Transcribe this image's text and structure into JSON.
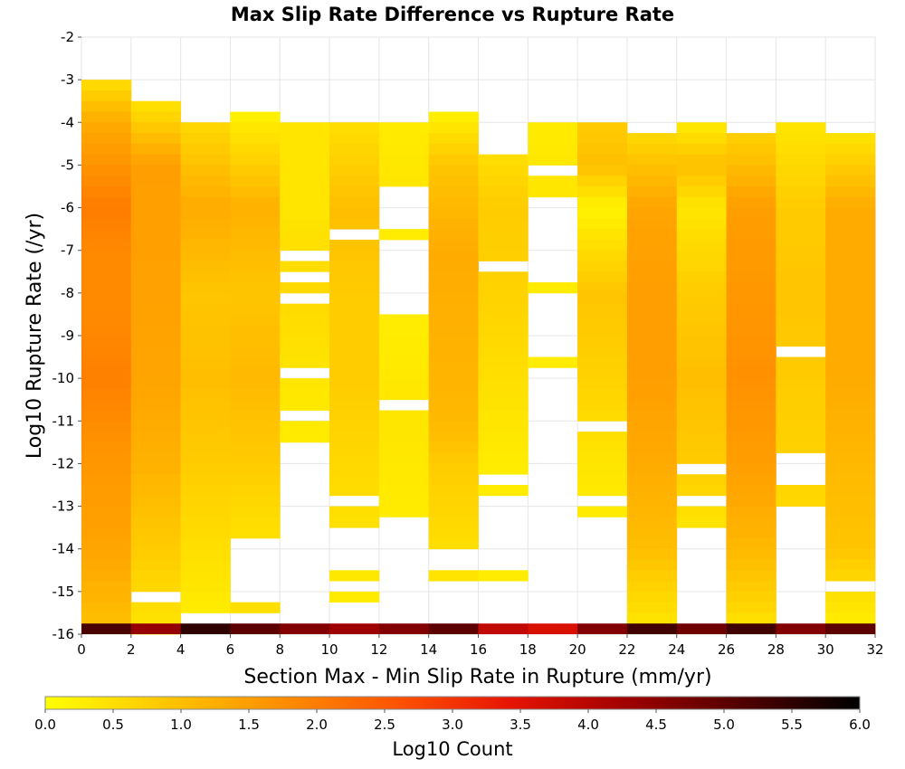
{
  "chart_data": {
    "type": "heatmap",
    "title": "Max Slip Rate Difference vs Rupture Rate",
    "xlabel": "Section Max - Min Slip Rate in Rupture (mm/yr)",
    "ylabel": "Log10 Rupture Rate (/yr)",
    "xlim": [
      0,
      32
    ],
    "ylim": [
      -16,
      -2
    ],
    "x_ticks": [
      "0",
      "2",
      "4",
      "6",
      "8",
      "10",
      "12",
      "14",
      "16",
      "18",
      "20",
      "22",
      "24",
      "26",
      "28",
      "30",
      "32"
    ],
    "y_ticks": [
      "-2",
      "-3",
      "-4",
      "-5",
      "-6",
      "-7",
      "-8",
      "-9",
      "-10",
      "-11",
      "-12",
      "-13",
      "-14",
      "-15",
      "-16"
    ],
    "x_bin_width": 2,
    "y_bin_height": 0.25,
    "grid": true,
    "colorbar": {
      "label": "Log10 Count",
      "min": 0.0,
      "max": 6.0,
      "ticks": [
        "0.0",
        "0.5",
        "1.0",
        "1.5",
        "2.0",
        "2.5",
        "3.0",
        "3.5",
        "4.0",
        "4.5",
        "5.0",
        "5.5",
        "6.0"
      ],
      "colors": [
        "#ffff00",
        "#ffc800",
        "#ff9000",
        "#ff5500",
        "#e61400",
        "#a00000",
        "#500000",
        "#000000"
      ]
    },
    "columns": [
      {
        "x0": 0,
        "top": -3.0,
        "bottom": -15.75,
        "profile": [
          [
            -3.0,
            0.5
          ],
          [
            -4.0,
            1.3
          ],
          [
            -6.0,
            2.0
          ],
          [
            -7.0,
            1.8
          ],
          [
            -8.5,
            1.8
          ],
          [
            -10.0,
            1.95
          ],
          [
            -12.0,
            1.6
          ],
          [
            -14.0,
            1.4
          ],
          [
            -15.75,
            1.0
          ]
        ],
        "gaps": []
      },
      {
        "x0": 2,
        "top": -3.5,
        "bottom": -16.0,
        "profile": [
          [
            -3.5,
            0.4
          ],
          [
            -5.0,
            1.5
          ],
          [
            -8.0,
            1.45
          ],
          [
            -10.0,
            1.4
          ],
          [
            -12.0,
            1.2
          ],
          [
            -14.0,
            0.8
          ],
          [
            -16.0,
            0.4
          ]
        ],
        "gaps": [
          [
            -15.25,
            -15.0
          ]
        ]
      },
      {
        "x0": 4,
        "top": -4.0,
        "bottom": -15.5,
        "profile": [
          [
            -4.0,
            0.6
          ],
          [
            -6.0,
            1.3
          ],
          [
            -8.0,
            0.9
          ],
          [
            -10.0,
            1.0
          ],
          [
            -12.0,
            0.8
          ],
          [
            -14.0,
            0.5
          ],
          [
            -15.5,
            0.3
          ]
        ],
        "gaps": []
      },
      {
        "x0": 6,
        "top": -3.75,
        "bottom": -15.5,
        "profile": [
          [
            -3.75,
            0.2
          ],
          [
            -6.0,
            1.2
          ],
          [
            -8.0,
            0.9
          ],
          [
            -10.0,
            1.1
          ],
          [
            -12.0,
            0.8
          ],
          [
            -13.5,
            0.5
          ]
        ],
        "gaps": [
          [
            -15.25,
            -13.75
          ]
        ]
      },
      {
        "x0": 8,
        "top": -4.0,
        "bottom": -11.5,
        "profile": [
          [
            -4.0,
            0.4
          ],
          [
            -6.0,
            0.4
          ],
          [
            -8.0,
            0.6
          ],
          [
            -10.0,
            0.4
          ],
          [
            -11.5,
            0.3
          ]
        ],
        "gaps": [
          [
            -7.25,
            -7.0
          ],
          [
            -7.75,
            -7.5
          ],
          [
            -8.25,
            -8.0
          ],
          [
            -10.0,
            -9.75
          ],
          [
            -11.0,
            -10.75
          ]
        ]
      },
      {
        "x0": 10,
        "top": -4.0,
        "bottom": -15.25,
        "profile": [
          [
            -4.0,
            0.5
          ],
          [
            -6.0,
            1.0
          ],
          [
            -8.0,
            0.8
          ],
          [
            -10.0,
            0.8
          ],
          [
            -12.0,
            0.6
          ],
          [
            -15.25,
            0.3
          ]
        ],
        "gaps": [
          [
            -6.75,
            -6.5
          ],
          [
            -13.0,
            -12.75
          ],
          [
            -14.5,
            -13.5
          ],
          [
            -15.0,
            -14.75
          ]
        ]
      },
      {
        "x0": 12,
        "top": -4.0,
        "bottom": -13.25,
        "profile": [
          [
            -4.0,
            0.3
          ],
          [
            -5.5,
            0.4
          ],
          [
            -6.5,
            0.3
          ],
          [
            -9.0,
            0.3
          ],
          [
            -11.0,
            0.4
          ],
          [
            -13.25,
            0.3
          ]
        ],
        "gaps": [
          [
            -6.5,
            -5.5
          ],
          [
            -8.5,
            -6.75
          ],
          [
            -10.75,
            -10.5
          ]
        ]
      },
      {
        "x0": 14,
        "top": -3.75,
        "bottom": -14.75,
        "profile": [
          [
            -3.75,
            0.2
          ],
          [
            -5.0,
            0.9
          ],
          [
            -7.0,
            1.3
          ],
          [
            -9.0,
            1.2
          ],
          [
            -11.0,
            1.1
          ],
          [
            -12.0,
            0.8
          ],
          [
            -14.0,
            0.5
          ],
          [
            -14.75,
            0.4
          ]
        ],
        "gaps": [
          [
            -14.5,
            -14.0
          ]
        ]
      },
      {
        "x0": 16,
        "top": -4.75,
        "bottom": -14.75,
        "profile": [
          [
            -4.75,
            0.5
          ],
          [
            -6.0,
            0.8
          ],
          [
            -8.0,
            0.7
          ],
          [
            -10.0,
            0.5
          ],
          [
            -12.0,
            0.3
          ],
          [
            -14.75,
            0.3
          ]
        ],
        "gaps": [
          [
            -7.5,
            -7.25
          ],
          [
            -12.5,
            -12.25
          ],
          [
            -14.5,
            -12.75
          ]
        ]
      },
      {
        "x0": 18,
        "top": -4.0,
        "bottom": -9.75,
        "profile": [
          [
            -4.0,
            0.3
          ],
          [
            -5.5,
            0.4
          ],
          [
            -8.0,
            0.3
          ],
          [
            -9.75,
            0.3
          ]
        ],
        "gaps": [
          [
            -5.25,
            -5.0
          ],
          [
            -7.75,
            -5.75
          ],
          [
            -9.5,
            -8.0
          ]
        ]
      },
      {
        "x0": 20,
        "top": -4.0,
        "bottom": -13.25,
        "profile": [
          [
            -4.0,
            0.8
          ],
          [
            -5.0,
            1.0
          ],
          [
            -6.0,
            0.2
          ],
          [
            -8.0,
            0.9
          ],
          [
            -10.0,
            0.7
          ],
          [
            -12.0,
            0.4
          ],
          [
            -13.25,
            0.3
          ]
        ],
        "gaps": [
          [
            -11.25,
            -11.0
          ],
          [
            -13.0,
            -12.75
          ]
        ]
      },
      {
        "x0": 22,
        "top": -4.25,
        "bottom": -15.75,
        "profile": [
          [
            -4.25,
            0.6
          ],
          [
            -6.0,
            1.4
          ],
          [
            -8.0,
            1.5
          ],
          [
            -10.0,
            1.5
          ],
          [
            -12.0,
            1.3
          ],
          [
            -14.0,
            1.0
          ],
          [
            -15.75,
            0.4
          ]
        ],
        "gaps": []
      },
      {
        "x0": 24,
        "top": -4.0,
        "bottom": -13.5,
        "profile": [
          [
            -4.0,
            0.3
          ],
          [
            -5.0,
            1.0
          ],
          [
            -6.0,
            0.4
          ],
          [
            -8.0,
            0.8
          ],
          [
            -10.0,
            1.0
          ],
          [
            -12.0,
            0.8
          ],
          [
            -13.5,
            0.4
          ]
        ],
        "gaps": [
          [
            -12.25,
            -12.0
          ],
          [
            -13.0,
            -12.75
          ]
        ]
      },
      {
        "x0": 26,
        "top": -4.25,
        "bottom": -15.75,
        "profile": [
          [
            -4.25,
            0.7
          ],
          [
            -6.0,
            1.5
          ],
          [
            -8.0,
            1.6
          ],
          [
            -10.0,
            1.7
          ],
          [
            -12.0,
            1.5
          ],
          [
            -14.0,
            1.1
          ],
          [
            -15.5,
            0.6
          ],
          [
            -15.75,
            0.4
          ]
        ],
        "gaps": []
      },
      {
        "x0": 28,
        "top": -4.0,
        "bottom": -13.0,
        "profile": [
          [
            -4.0,
            0.4
          ],
          [
            -6.0,
            0.8
          ],
          [
            -8.0,
            0.9
          ],
          [
            -10.0,
            0.8
          ],
          [
            -12.0,
            0.7
          ],
          [
            -13.0,
            0.6
          ]
        ],
        "gaps": [
          [
            -9.5,
            -9.25
          ],
          [
            -12.5,
            -11.75
          ]
        ]
      },
      {
        "x0": 30,
        "top": -4.25,
        "bottom": -15.75,
        "profile": [
          [
            -4.25,
            0.4
          ],
          [
            -6.0,
            1.3
          ],
          [
            -8.0,
            1.3
          ],
          [
            -10.0,
            1.3
          ],
          [
            -12.0,
            1.1
          ],
          [
            -14.0,
            0.9
          ],
          [
            -15.0,
            0.5
          ],
          [
            -15.75,
            0.3
          ]
        ],
        "gaps": [
          [
            -15.0,
            -14.75
          ]
        ]
      }
    ],
    "bottom_row": {
      "y0": -16.0,
      "y1": -15.75,
      "values": [
        5.2,
        4.4,
        5.5,
        5.0,
        4.6,
        4.3,
        4.6,
        5.0,
        3.9,
        3.6,
        4.6,
        5.3,
        4.8,
        5.3,
        4.6,
        5.0
      ]
    }
  }
}
